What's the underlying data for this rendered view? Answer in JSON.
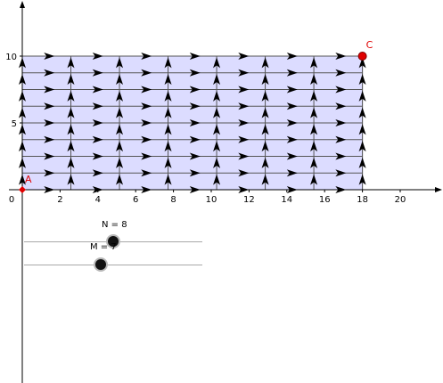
{
  "graph": {
    "x_ticks": [
      "0",
      "2",
      "4",
      "6",
      "8",
      "10",
      "12",
      "14",
      "16",
      "18",
      "20"
    ],
    "y_ticks": [
      "5",
      "10"
    ],
    "grid_columns": 7,
    "grid_rows": 8,
    "x_max": 18,
    "y_max": 10,
    "fill_color": "#dcdcff",
    "line_color": "#555555",
    "arrow_color": "#000000"
  },
  "points": {
    "A": {
      "label": "A",
      "x": 0,
      "y": 0,
      "color": "#e00000",
      "shape": "diamond"
    },
    "C": {
      "label": "C",
      "x": 18,
      "y": 10,
      "color": "#e00000",
      "shape": "circle"
    }
  },
  "sliders": {
    "n": {
      "label": "N = 8",
      "value": 8
    },
    "m": {
      "label": "M = 7",
      "value": 7
    }
  }
}
